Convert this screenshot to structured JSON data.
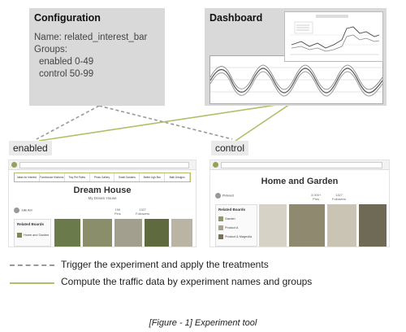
{
  "config": {
    "title": "Configuration",
    "lines": [
      "Name: related_interest_bar",
      "Groups:",
      "enabled 0-49",
      "control 50-99"
    ]
  },
  "dashboard": {
    "title": "Dashboard"
  },
  "groups": {
    "enabled_label": "enabled",
    "control_label": "control"
  },
  "enabled_page": {
    "tags": [
      "Ideas for Interest",
      "Farmhouse Kitchens",
      "Tiny Pet Paths",
      "Photo Gallery",
      "Small Gardens",
      "Better Ugh Bar",
      "Bath Designs"
    ],
    "board_title": "Dream House",
    "board_sub": "My Dream House",
    "owner": "Julie Ann",
    "stat1": "190",
    "stat1_label": "Pins",
    "stat2": "1327",
    "stat2_label": "Followers",
    "related_title": "Related Boards",
    "related_items": [
      "Home and Garden"
    ]
  },
  "control_page": {
    "board_title": "Home and Garden",
    "owner": "Pinterest",
    "stat1": "3,000+",
    "stat1_label": "Pins",
    "stat2": "1327",
    "stat2_label": "Followers",
    "related_title": "Related Boards",
    "related_items": [
      "Garden",
      "Product A",
      "Product & Magnolia"
    ]
  },
  "legend": {
    "dashed_text": "Trigger the experiment and apply the treatments",
    "solid_text": "Compute the traffic data by experiment names and groups"
  },
  "caption": "[Figure - 1] Experiment tool",
  "colors": {
    "panel": "#d9d9d9",
    "accent": "#b5bc6a",
    "dashed": "#999999"
  }
}
